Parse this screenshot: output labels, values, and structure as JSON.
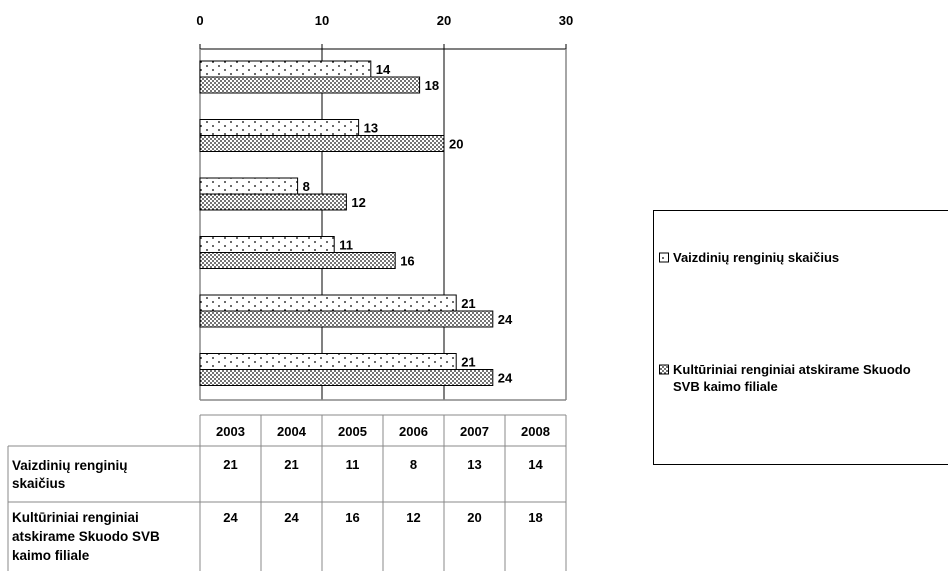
{
  "chart_data": {
    "type": "bar",
    "orientation": "horizontal",
    "categories": [
      "2003",
      "2004",
      "2005",
      "2006",
      "2007",
      "2008"
    ],
    "series": [
      {
        "name": "Vaizdinių renginių skaičius",
        "values": [
          21,
          21,
          11,
          8,
          13,
          14
        ],
        "pattern": "sparse-dots"
      },
      {
        "name": "Kultūriniai renginiai atskirame Skuodo SVB kaimo filiale",
        "values": [
          24,
          24,
          16,
          12,
          20,
          18
        ],
        "pattern": "dense-dots"
      }
    ],
    "xlim": [
      0,
      30
    ],
    "x_ticks": [
      "0",
      "10",
      "20",
      "30"
    ],
    "grid": true,
    "legend_position": "right",
    "category_order": "2003 at bottom, 2008 at top",
    "data_table": true
  },
  "table": {
    "header": [
      "2003",
      "2004",
      "2005",
      "2006",
      "2007",
      "2008"
    ],
    "rows": [
      {
        "label_lines": [
          "Vaizdinių renginių",
          "skaičius"
        ],
        "values": [
          "21",
          "21",
          "11",
          "8",
          "13",
          "14"
        ]
      },
      {
        "label_lines": [
          "Kultūriniai renginiai",
          "atskirame Skuodo SVB",
          "kaimo filiale"
        ],
        "values": [
          "24",
          "24",
          "16",
          "12",
          "20",
          "18"
        ]
      }
    ]
  },
  "legend": {
    "items": [
      {
        "label_lines": [
          "Vaizdinių renginių skaičius"
        ]
      },
      {
        "label_lines": [
          "Kultūriniai renginiai atskirame Skuodo",
          "SVB kaimo filiale"
        ]
      }
    ]
  },
  "colors": {
    "bar_fill": "#ffffff",
    "pattern": "#000000",
    "grid": "#000000",
    "frame": "#888888"
  }
}
